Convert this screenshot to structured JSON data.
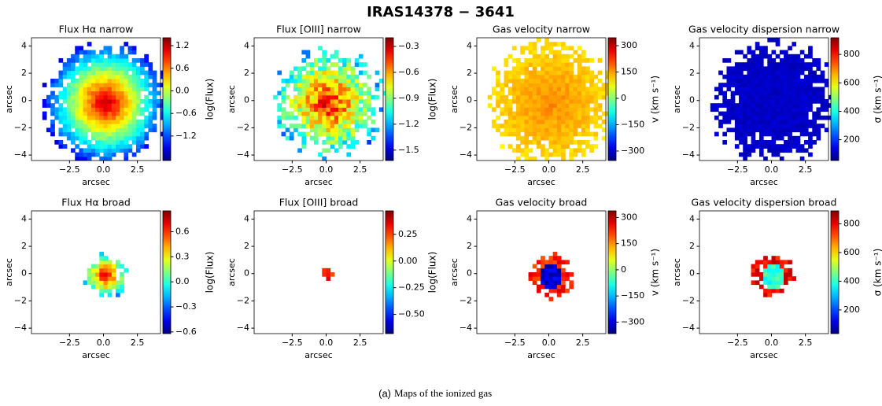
{
  "figure": {
    "title": "IRAS14378 − 3641"
  },
  "caption": {
    "label": "(a)",
    "text": "Maps of the ionized gas"
  },
  "chart_data": [
    {
      "type": "heatmap",
      "title": "Flux Hα narrow",
      "xlabel": "arcsec",
      "ylabel": "arcsec",
      "cmap": "jet",
      "xlim": [
        -5.3,
        4.2
      ],
      "ylim": [
        -4.4,
        4.6
      ],
      "xticks": [
        {
          "value": -2.5,
          "label": "−2.5"
        },
        {
          "value": 0,
          "label": "0.0"
        },
        2.5
      ],
      "yticks": [
        {
          "value": -4,
          "label": "−4"
        },
        {
          "value": -2,
          "label": "−2"
        },
        0,
        2,
        4
      ],
      "clabel": "log(Flux)",
      "clim": [
        -1.85,
        1.41
      ],
      "cticks": [
        {
          "value": -1.2,
          "label": "−1.2"
        },
        {
          "value": -0.6,
          "label": "−0.6"
        },
        {
          "value": 0,
          "label": "0.0"
        },
        0.6,
        1.2
      ]
    },
    {
      "type": "heatmap",
      "title": "Flux [OIII] narrow",
      "xlabel": "arcsec",
      "ylabel": "arcsec",
      "cmap": "jet",
      "xlim": [
        -5.3,
        4.2
      ],
      "ylim": [
        -4.4,
        4.6
      ],
      "xticks": [
        {
          "value": -2.5,
          "label": "−2.5"
        },
        {
          "value": 0,
          "label": "0.0"
        },
        2.5
      ],
      "yticks": [
        {
          "value": -4,
          "label": "−4"
        },
        {
          "value": -2,
          "label": "−2"
        },
        0,
        2,
        4
      ],
      "clabel": "log(Flux)",
      "clim": [
        -1.62,
        -0.2
      ],
      "cticks": [
        {
          "value": -1.5,
          "label": "−1.5"
        },
        {
          "value": -1.2,
          "label": "−1.2"
        },
        {
          "value": -0.9,
          "label": "−0.9"
        },
        {
          "value": -0.6,
          "label": "−0.6"
        },
        {
          "value": -0.3,
          "label": "−0.3"
        }
      ]
    },
    {
      "type": "heatmap",
      "title": "Gas velocity narrow",
      "xlabel": "arcsec",
      "ylabel": "arcsec",
      "cmap": "jet",
      "xlim": [
        -5.3,
        4.2
      ],
      "ylim": [
        -4.4,
        4.6
      ],
      "xticks": [
        {
          "value": -2.5,
          "label": "−2.5"
        },
        {
          "value": 0,
          "label": "0.0"
        },
        2.5
      ],
      "yticks": [
        {
          "value": -4,
          "label": "−4"
        },
        {
          "value": -2,
          "label": "−2"
        },
        0,
        2,
        4
      ],
      "clabel": "v (km s⁻¹)",
      "clim": [
        -354,
        345
      ],
      "cticks": [
        {
          "value": -300,
          "label": "−300"
        },
        {
          "value": -150,
          "label": "−150"
        },
        0,
        150,
        300
      ]
    },
    {
      "type": "heatmap",
      "title": "Gas velocity dispersion narrow",
      "xlabel": "arcsec",
      "ylabel": "arcsec",
      "cmap": "jet",
      "xlim": [
        -5.3,
        4.2
      ],
      "ylim": [
        -4.4,
        4.6
      ],
      "xticks": [
        {
          "value": -2.5,
          "label": "−2.5"
        },
        {
          "value": 0,
          "label": "0.0"
        },
        2.5
      ],
      "yticks": [
        {
          "value": -4,
          "label": "−4"
        },
        {
          "value": -2,
          "label": "−2"
        },
        0,
        2,
        4
      ],
      "clabel": "σ (km s⁻¹)",
      "clim": [
        54,
        917
      ],
      "cticks": [
        200,
        400,
        600,
        800
      ]
    },
    {
      "type": "heatmap",
      "title": "Flux Hα broad",
      "xlabel": "arcsec",
      "ylabel": "arcsec",
      "cmap": "jet",
      "xlim": [
        -5.3,
        4.2
      ],
      "ylim": [
        -4.4,
        4.6
      ],
      "xticks": [
        {
          "value": -2.5,
          "label": "−2.5"
        },
        {
          "value": 0,
          "label": "0.0"
        },
        2.5
      ],
      "yticks": [
        {
          "value": -4,
          "label": "−4"
        },
        {
          "value": -2,
          "label": "−2"
        },
        0,
        2,
        4
      ],
      "clabel": "log(Flux)",
      "clim": [
        -0.62,
        0.85
      ],
      "cticks": [
        {
          "value": -0.6,
          "label": "−0.6"
        },
        {
          "value": -0.3,
          "label": "−0.3"
        },
        {
          "value": 0,
          "label": "0.0"
        },
        0.3,
        0.6
      ]
    },
    {
      "type": "heatmap",
      "title": "Flux [OIII] broad",
      "xlabel": "arcsec",
      "ylabel": "arcsec",
      "cmap": "jet",
      "xlim": [
        -5.3,
        4.2
      ],
      "ylim": [
        -4.4,
        4.6
      ],
      "xticks": [
        {
          "value": -2.5,
          "label": "−2.5"
        },
        {
          "value": 0,
          "label": "0.0"
        },
        2.5
      ],
      "yticks": [
        {
          "value": -4,
          "label": "−4"
        },
        {
          "value": -2,
          "label": "−2"
        },
        0,
        2,
        4
      ],
      "clabel": "log(Flux)",
      "clim": [
        -0.68,
        0.47
      ],
      "cticks": [
        {
          "value": -0.5,
          "label": "−0.50"
        },
        {
          "value": -0.25,
          "label": "−0.25"
        },
        {
          "value": 0,
          "label": "0.00"
        },
        0.25
      ]
    },
    {
      "type": "heatmap",
      "title": "Gas velocity broad",
      "xlabel": "arcsec",
      "ylabel": "arcsec",
      "cmap": "jet",
      "xlim": [
        -5.3,
        4.2
      ],
      "ylim": [
        -4.4,
        4.6
      ],
      "xticks": [
        {
          "value": -2.5,
          "label": "−2.5"
        },
        {
          "value": 0,
          "label": "0.0"
        },
        2.5
      ],
      "yticks": [
        {
          "value": -4,
          "label": "−4"
        },
        {
          "value": -2,
          "label": "−2"
        },
        0,
        2,
        4
      ],
      "clabel": "v (km s⁻¹)",
      "clim": [
        -366,
        338
      ],
      "cticks": [
        {
          "value": -300,
          "label": "−300"
        },
        {
          "value": -150,
          "label": "−150"
        },
        0,
        150,
        300
      ]
    },
    {
      "type": "heatmap",
      "title": "Gas velocity dispersion broad",
      "xlabel": "arcsec",
      "ylabel": "arcsec",
      "cmap": "jet",
      "xlim": [
        -5.3,
        4.2
      ],
      "ylim": [
        -4.4,
        4.6
      ],
      "xticks": [
        {
          "value": -2.5,
          "label": "−2.5"
        },
        {
          "value": 0,
          "label": "0.0"
        },
        2.5
      ],
      "yticks": [
        {
          "value": -4,
          "label": "−4"
        },
        {
          "value": -2,
          "label": "−2"
        },
        0,
        2,
        4
      ],
      "clabel": "σ (km s⁻¹)",
      "clim": [
        35,
        890
      ],
      "cticks": [
        200,
        400,
        600,
        800
      ]
    }
  ]
}
